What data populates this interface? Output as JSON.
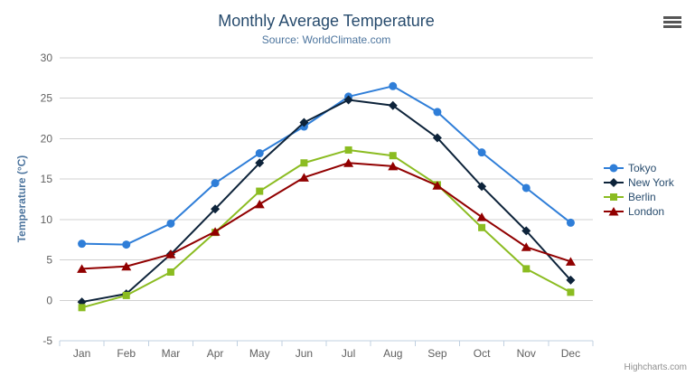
{
  "header": {
    "title": "Monthly Average Temperature",
    "subtitle": "Source: WorldClimate.com"
  },
  "credits": "Highcharts.com",
  "chart_data": {
    "type": "line",
    "title": "Monthly Average Temperature",
    "subtitle": "Source: WorldClimate.com",
    "xlabel": "",
    "ylabel": "Temperature (°C)",
    "ylim": [
      -5,
      30
    ],
    "yticks": [
      -5,
      0,
      5,
      10,
      15,
      20,
      25,
      30
    ],
    "grid": "horizontal",
    "legend_position": "right",
    "categories": [
      "Jan",
      "Feb",
      "Mar",
      "Apr",
      "May",
      "Jun",
      "Jul",
      "Aug",
      "Sep",
      "Oct",
      "Nov",
      "Dec"
    ],
    "series": [
      {
        "name": "Tokyo",
        "color": "#2f7ed8",
        "marker": "circle",
        "values": [
          7.0,
          6.9,
          9.5,
          14.5,
          18.2,
          21.5,
          25.2,
          26.5,
          23.3,
          18.3,
          13.9,
          9.6
        ]
      },
      {
        "name": "New York",
        "color": "#0d233a",
        "marker": "diamond",
        "values": [
          -0.2,
          0.8,
          5.7,
          11.3,
          17.0,
          22.0,
          24.8,
          24.1,
          20.1,
          14.1,
          8.6,
          2.5
        ]
      },
      {
        "name": "Berlin",
        "color": "#8bbc21",
        "marker": "square",
        "values": [
          -0.9,
          0.6,
          3.5,
          8.4,
          13.5,
          17.0,
          18.6,
          17.9,
          14.3,
          9.0,
          3.9,
          1.0
        ]
      },
      {
        "name": "London",
        "color": "#910000",
        "marker": "triangle",
        "values": [
          3.9,
          4.2,
          5.7,
          8.5,
          11.9,
          15.2,
          17.0,
          16.6,
          14.2,
          10.3,
          6.6,
          4.8
        ]
      }
    ]
  },
  "colors": {
    "title": "#274b6d",
    "subtitle": "#4d759e",
    "axis_title": "#4d759e",
    "tick_label": "#606060",
    "grid": "#d0d0d0",
    "axis_line": "#c0d0e0",
    "legend_text": "#274b6d",
    "credits_text": "#909090",
    "menu_icon": "#565656",
    "background": "#ffffff"
  }
}
